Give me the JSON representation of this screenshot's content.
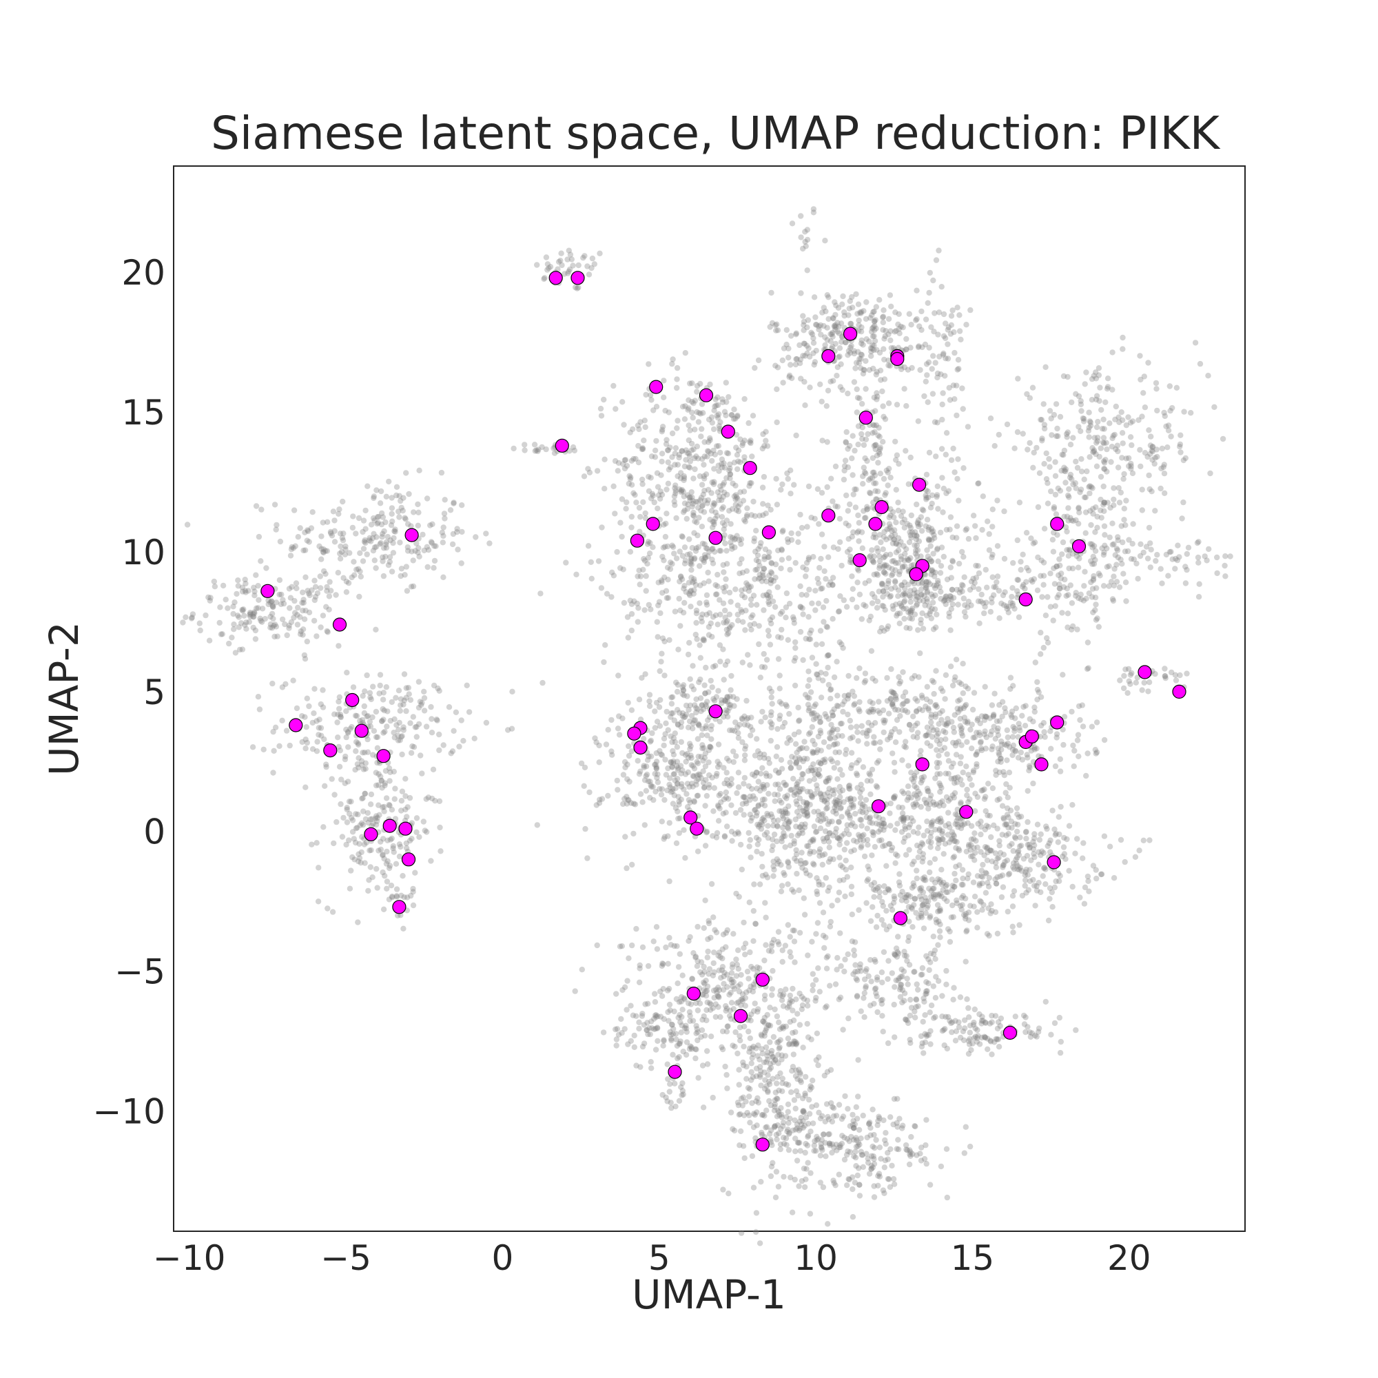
{
  "chart_data": {
    "type": "scatter",
    "title": "Siamese latent space, UMAP reduction: PIKK",
    "xlabel": "UMAP-1",
    "ylabel": "UMAP-2",
    "xlim": [
      -10.5,
      23.7
    ],
    "ylim": [
      -14.3,
      23.8
    ],
    "grid": false,
    "xticks": [
      -10,
      -5,
      0,
      5,
      10,
      15,
      20
    ],
    "yticks": [
      -10,
      -5,
      0,
      5,
      10,
      15,
      20
    ],
    "background_color": "#808080",
    "highlight_color": "#ff00ff",
    "highlight_edge_color": "#000000",
    "background_clusters": [
      {
        "cx": 9.6,
        "cy": 21.5,
        "sx": 0.25,
        "sy": 0.5,
        "n": 12
      },
      {
        "cx": 2.2,
        "cy": 20.1,
        "sx": 0.6,
        "sy": 0.4,
        "n": 40
      },
      {
        "cx": 1.5,
        "cy": 13.7,
        "sx": 0.6,
        "sy": 0.1,
        "n": 22
      },
      {
        "cx": -4.0,
        "cy": 10.5,
        "sx": 1.5,
        "sy": 1.0,
        "n": 230
      },
      {
        "cx": -7.4,
        "cy": 7.9,
        "sx": 1.2,
        "sy": 0.6,
        "n": 170
      },
      {
        "cx": -4.2,
        "cy": 3.8,
        "sx": 1.5,
        "sy": 0.9,
        "n": 220
      },
      {
        "cx": -4.0,
        "cy": 0.2,
        "sx": 0.9,
        "sy": 1.4,
        "n": 200
      },
      {
        "cx": -3.3,
        "cy": -2.3,
        "sx": 0.2,
        "sy": 0.5,
        "n": 12
      },
      {
        "cx": 6.2,
        "cy": 13.2,
        "sx": 1.3,
        "sy": 1.7,
        "n": 380
      },
      {
        "cx": 7.2,
        "cy": 9.0,
        "sx": 2.0,
        "sy": 2.0,
        "n": 520
      },
      {
        "cx": 11.2,
        "cy": 17.6,
        "sx": 1.3,
        "sy": 0.9,
        "n": 300
      },
      {
        "cx": 14.1,
        "cy": 16.5,
        "sx": 0.4,
        "sy": 1.8,
        "n": 70
      },
      {
        "cx": 11.8,
        "cy": 13.6,
        "sx": 0.5,
        "sy": 1.4,
        "n": 110
      },
      {
        "cx": 12.8,
        "cy": 10.2,
        "sx": 1.2,
        "sy": 1.2,
        "n": 300
      },
      {
        "cx": 13.4,
        "cy": 8.4,
        "sx": 1.2,
        "sy": 0.6,
        "n": 150
      },
      {
        "cx": 19.2,
        "cy": 13.8,
        "sx": 1.6,
        "sy": 1.3,
        "n": 260
      },
      {
        "cx": 18.3,
        "cy": 10.0,
        "sx": 1.0,
        "sy": 1.6,
        "n": 190
      },
      {
        "cx": 16.0,
        "cy": 8.5,
        "sx": 1.5,
        "sy": 0.5,
        "n": 80
      },
      {
        "cx": 21.0,
        "cy": 9.8,
        "sx": 1.2,
        "sy": 0.4,
        "n": 60
      },
      {
        "cx": 20.6,
        "cy": 5.4,
        "sx": 0.7,
        "sy": 0.3,
        "n": 30
      },
      {
        "cx": 5.8,
        "cy": 2.0,
        "sx": 1.3,
        "sy": 1.2,
        "n": 330
      },
      {
        "cx": 6.6,
        "cy": 4.3,
        "sx": 1.1,
        "sy": 0.5,
        "n": 120
      },
      {
        "cx": 9.6,
        "cy": 0.5,
        "sx": 1.2,
        "sy": 1.5,
        "n": 420
      },
      {
        "cx": 10.0,
        "cy": 4.3,
        "sx": 0.6,
        "sy": 1.8,
        "n": 100
      },
      {
        "cx": 13.0,
        "cy": 4.3,
        "sx": 1.5,
        "sy": 0.8,
        "n": 220
      },
      {
        "cx": 16.0,
        "cy": 3.4,
        "sx": 1.4,
        "sy": 0.8,
        "n": 200
      },
      {
        "cx": 13.6,
        "cy": 0.5,
        "sx": 1.7,
        "sy": 1.3,
        "n": 400
      },
      {
        "cx": 16.5,
        "cy": -0.9,
        "sx": 1.4,
        "sy": 0.8,
        "n": 200
      },
      {
        "cx": 13.5,
        "cy": -2.6,
        "sx": 1.3,
        "sy": 0.6,
        "n": 170
      },
      {
        "cx": 7.0,
        "cy": -5.5,
        "sx": 1.6,
        "sy": 1.2,
        "n": 290
      },
      {
        "cx": 5.0,
        "cy": -7.2,
        "sx": 0.8,
        "sy": 0.6,
        "n": 90
      },
      {
        "cx": 5.5,
        "cy": -9.0,
        "sx": 0.2,
        "sy": 0.6,
        "n": 20
      },
      {
        "cx": 8.8,
        "cy": -9.2,
        "sx": 0.8,
        "sy": 2.0,
        "n": 330
      },
      {
        "cx": 11.3,
        "cy": -11.2,
        "sx": 1.1,
        "sy": 0.9,
        "n": 200
      },
      {
        "cx": 13.2,
        "cy": -11.4,
        "sx": 0.2,
        "sy": 0.2,
        "n": 10
      },
      {
        "cx": 12.5,
        "cy": -5.5,
        "sx": 1.1,
        "sy": 0.8,
        "n": 160
      },
      {
        "cx": 15.4,
        "cy": -7.2,
        "sx": 1.2,
        "sy": 0.4,
        "n": 110
      }
    ],
    "highlight_points": [
      [
        1.7,
        19.8
      ],
      [
        2.4,
        19.8
      ],
      [
        1.9,
        13.8
      ],
      [
        -7.5,
        8.6
      ],
      [
        -5.2,
        7.4
      ],
      [
        -2.9,
        10.6
      ],
      [
        -6.6,
        3.8
      ],
      [
        -4.8,
        4.7
      ],
      [
        -5.5,
        2.9
      ],
      [
        -4.5,
        3.6
      ],
      [
        -3.8,
        2.7
      ],
      [
        -3.6,
        0.2
      ],
      [
        -3.1,
        0.1
      ],
      [
        -4.2,
        -0.1
      ],
      [
        -3.0,
        -1.0
      ],
      [
        -3.3,
        -2.7
      ],
      [
        4.9,
        15.9
      ],
      [
        6.5,
        15.6
      ],
      [
        7.2,
        14.3
      ],
      [
        7.9,
        13.0
      ],
      [
        4.8,
        11.0
      ],
      [
        4.3,
        10.4
      ],
      [
        6.8,
        10.5
      ],
      [
        8.5,
        10.7
      ],
      [
        11.1,
        17.8
      ],
      [
        10.4,
        17.0
      ],
      [
        12.6,
        17.0
      ],
      [
        12.6,
        16.9
      ],
      [
        11.6,
        14.8
      ],
      [
        10.4,
        11.3
      ],
      [
        12.1,
        11.6
      ],
      [
        11.9,
        11.0
      ],
      [
        13.3,
        12.4
      ],
      [
        11.4,
        9.7
      ],
      [
        13.4,
        9.5
      ],
      [
        13.2,
        9.2
      ],
      [
        17.7,
        11.0
      ],
      [
        18.4,
        10.2
      ],
      [
        16.7,
        8.3
      ],
      [
        20.5,
        5.7
      ],
      [
        21.6,
        5.0
      ],
      [
        6.8,
        4.3
      ],
      [
        4.4,
        3.7
      ],
      [
        4.2,
        3.5
      ],
      [
        4.4,
        3.0
      ],
      [
        6.0,
        0.5
      ],
      [
        6.2,
        0.1
      ],
      [
        12.0,
        0.9
      ],
      [
        13.4,
        2.4
      ],
      [
        14.8,
        0.7
      ],
      [
        16.7,
        3.2
      ],
      [
        16.9,
        3.4
      ],
      [
        17.7,
        3.9
      ],
      [
        17.2,
        2.4
      ],
      [
        17.6,
        -1.1
      ],
      [
        12.7,
        -3.1
      ],
      [
        8.3,
        -5.3
      ],
      [
        6.1,
        -5.8
      ],
      [
        7.6,
        -6.6
      ],
      [
        5.5,
        -8.6
      ],
      [
        8.3,
        -11.2
      ],
      [
        16.2,
        -7.2
      ]
    ]
  }
}
